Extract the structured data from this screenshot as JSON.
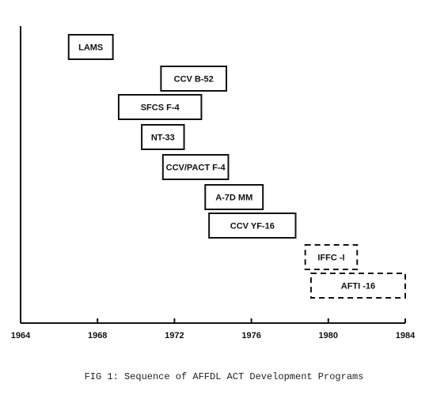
{
  "chart_data": {
    "type": "gantt",
    "title": "FIG 1:  Sequence of AFFDL ACT Development Programs",
    "xlabel": "",
    "ylabel": "",
    "xlim": [
      1964,
      1984
    ],
    "x_ticks": [
      "1964",
      "1968",
      "1972",
      "1976",
      "1980",
      "1984"
    ],
    "grid": false,
    "legend": "none",
    "line_color": "#111111",
    "programs": [
      {
        "label": "LAMS",
        "start": 1966.5,
        "end": 1968.8,
        "style": "solid"
      },
      {
        "label": "CCV B-52",
        "start": 1971.3,
        "end": 1974.7,
        "style": "solid"
      },
      {
        "label": "SFCS F-4",
        "start": 1969.1,
        "end": 1973.4,
        "style": "solid"
      },
      {
        "label": "NT-33",
        "start": 1970.3,
        "end": 1972.5,
        "style": "solid"
      },
      {
        "label": "CCV/PACT F-4",
        "start": 1971.4,
        "end": 1974.8,
        "style": "solid"
      },
      {
        "label": "A-7D MM",
        "start": 1973.6,
        "end": 1976.6,
        "style": "solid"
      },
      {
        "label": "CCV YF-16",
        "start": 1973.8,
        "end": 1978.3,
        "style": "solid"
      },
      {
        "label": "IFFC -I",
        "start": 1978.8,
        "end": 1981.5,
        "style": "dashed"
      },
      {
        "label": "AFTI -16",
        "start": 1979.1,
        "end": 1984.0,
        "style": "dashed"
      }
    ]
  }
}
